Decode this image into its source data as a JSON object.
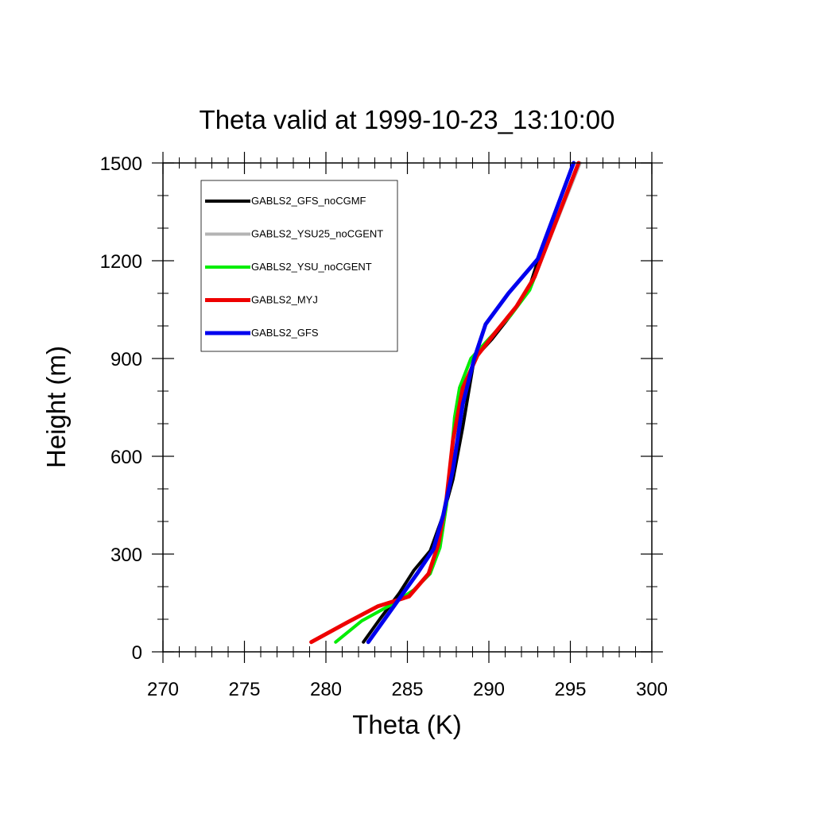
{
  "chart_data": {
    "type": "line",
    "title": "Theta valid at 1999-10-23_13:10:00",
    "xlabel": "Theta (K)",
    "ylabel": "Height (m)",
    "xlim": [
      270,
      300
    ],
    "ylim": [
      0,
      1500
    ],
    "x_ticks": [
      270,
      275,
      280,
      285,
      290,
      295,
      300
    ],
    "y_ticks": [
      0,
      300,
      600,
      900,
      1200,
      1500
    ],
    "legend_position": "top-left (inside plot)",
    "series": [
      {
        "name": "GABLS2_GFS_noCGMF",
        "color": "#000000",
        "x": [
          282.3,
          283.3,
          284.5,
          285.4,
          286.4,
          287.2,
          287.8,
          288.4,
          289.1,
          290.2,
          291.3,
          292.4,
          293.1,
          295.2
        ],
        "y": [
          30,
          100,
          180,
          250,
          310,
          420,
          530,
          690,
          900,
          960,
          1030,
          1105,
          1215,
          1500
        ]
      },
      {
        "name": "GABLS2_YSU25_noCGENT",
        "color": "#b4b4b4",
        "x": [
          280.6,
          282.2,
          284.2,
          285.4,
          286.4,
          287.0,
          287.4,
          287.7,
          287.9,
          288.2,
          288.9,
          290.0,
          291.3,
          292.5,
          293.2,
          295.6
        ],
        "y": [
          30,
          95,
          150,
          190,
          240,
          320,
          450,
          600,
          720,
          810,
          900,
          960,
          1030,
          1110,
          1200,
          1500
        ]
      },
      {
        "name": "GABLS2_YSU_noCGENT",
        "color": "#00ee00",
        "x": [
          280.6,
          282.2,
          284.2,
          285.4,
          286.4,
          287.0,
          287.4,
          287.7,
          287.9,
          288.2,
          288.9,
          290.0,
          291.3,
          292.5,
          293.2,
          295.5
        ],
        "y": [
          30,
          95,
          150,
          190,
          240,
          320,
          450,
          600,
          720,
          810,
          900,
          960,
          1030,
          1110,
          1200,
          1500
        ]
      },
      {
        "name": "GABLS2_MYJ",
        "color": "#ee0000",
        "x": [
          279.1,
          281.3,
          283.2,
          285.1,
          286.3,
          286.9,
          287.4,
          287.8,
          288.4,
          289.3,
          290.4,
          291.7,
          292.8,
          295.5
        ],
        "y": [
          30,
          90,
          140,
          170,
          240,
          330,
          470,
          650,
          810,
          910,
          980,
          1060,
          1150,
          1500
        ]
      },
      {
        "name": "GABLS2_GFS",
        "color": "#0000ee",
        "x": [
          282.6,
          283.6,
          284.6,
          285.6,
          286.6,
          287.2,
          287.8,
          288.4,
          289.1,
          289.8,
          291.2,
          293.0,
          295.2
        ],
        "y": [
          30,
          100,
          170,
          240,
          315,
          420,
          560,
          760,
          900,
          1005,
          1100,
          1205,
          1500
        ]
      }
    ]
  }
}
